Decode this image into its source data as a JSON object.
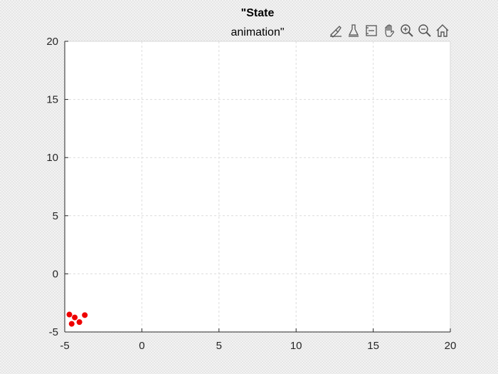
{
  "chart_data": {
    "type": "scatter",
    "title_lines": [
      "\"State",
      "animation\""
    ],
    "xlim": [
      -5,
      20
    ],
    "ylim": [
      -5,
      20
    ],
    "x_ticks": [
      -5,
      0,
      5,
      10,
      15,
      20
    ],
    "y_ticks": [
      -5,
      0,
      5,
      10,
      15,
      20
    ],
    "grid": true,
    "marker_color": "#ee0000",
    "series": [
      {
        "x": [
          -4.7,
          -4.35,
          -3.7,
          -4.55,
          -4.05
        ],
        "y": [
          -3.5,
          -3.75,
          -3.55,
          -4.3,
          -4.15
        ]
      }
    ]
  },
  "toolbar": {
    "buttons": [
      {
        "icon": "brush-icon",
        "key": "brush"
      },
      {
        "icon": "data-tip-icon",
        "key": "data-tips"
      },
      {
        "icon": "restore-view-icon",
        "key": "restore-view-box"
      },
      {
        "icon": "pan-hand-icon",
        "key": "pan"
      },
      {
        "icon": "zoom-in-icon",
        "key": "zoom-in"
      },
      {
        "icon": "zoom-out-icon",
        "key": "zoom-out"
      },
      {
        "icon": "home-icon",
        "key": "home"
      }
    ]
  }
}
